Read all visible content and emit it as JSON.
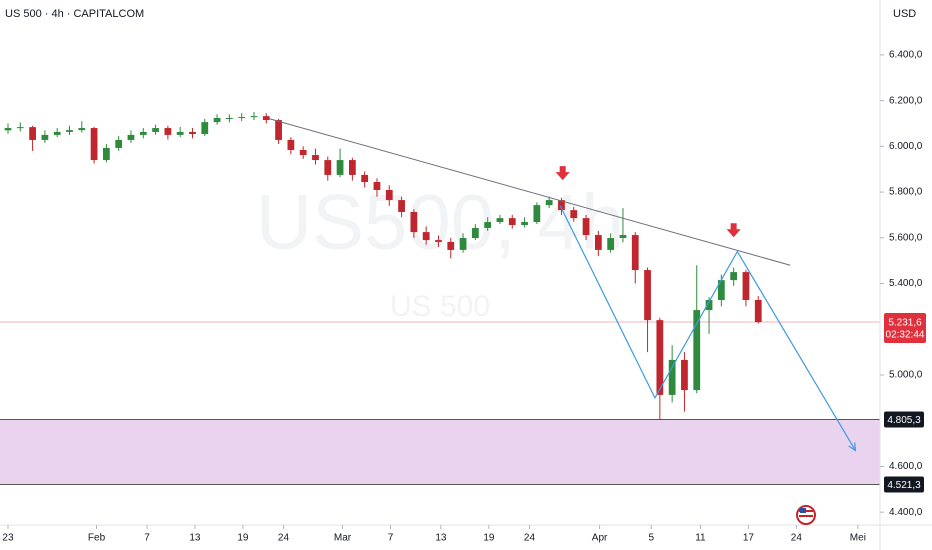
{
  "chart_data": {
    "type": "candlestick",
    "title": "US 500 · 4h · CAPITALCOM",
    "currency": "USD",
    "watermark": "US500, 4h",
    "watermark_subtitle": "US 500",
    "countdown": "02:32:44",
    "up_color": "#2e8b3e",
    "down_color": "#c0262d",
    "x": [
      0,
      1,
      2,
      3,
      4,
      5,
      6,
      7,
      8,
      9,
      10,
      11,
      12,
      13,
      14,
      15,
      16,
      17,
      18,
      19,
      20,
      21,
      22,
      23,
      24,
      25,
      26,
      27,
      28,
      29,
      30,
      31,
      32,
      33,
      34,
      35,
      36,
      37,
      38,
      39,
      40,
      41,
      42,
      43,
      44,
      45,
      46,
      47,
      48,
      49,
      50,
      51,
      52,
      53,
      54,
      55,
      56,
      57,
      58,
      59,
      60,
      61
    ],
    "open": [
      6070,
      6080,
      6084,
      6028,
      6050,
      6063,
      6071,
      6080,
      5940,
      5993,
      6028,
      6050,
      6063,
      6080,
      6050,
      6063,
      6054,
      6106,
      6124,
      6124,
      6128,
      6132,
      6115,
      6028,
      5984,
      5962,
      5940,
      5875,
      5940,
      5875,
      5844,
      5809,
      5765,
      5713,
      5625,
      5590,
      5582,
      5547,
      5599,
      5643,
      5669,
      5686,
      5656,
      5669,
      5743,
      5765,
      5721,
      5686,
      5612,
      5547,
      5599,
      5612,
      5459,
      5240,
      4913,
      5066,
      4934,
      5284,
      5328,
      5415,
      5450,
      5328
    ],
    "high": [
      6100,
      6105,
      6090,
      6070,
      6080,
      6090,
      6110,
      6085,
      6010,
      6045,
      6070,
      6080,
      6095,
      6090,
      6085,
      6080,
      6120,
      6140,
      6140,
      6145,
      6150,
      6145,
      6120,
      6040,
      6000,
      5990,
      5955,
      5990,
      5950,
      5890,
      5860,
      5830,
      5780,
      5725,
      5650,
      5610,
      5600,
      5620,
      5660,
      5690,
      5700,
      5700,
      5690,
      5755,
      5780,
      5775,
      5735,
      5700,
      5630,
      5620,
      5730,
      5625,
      5470,
      5250,
      5130,
      5100,
      5480,
      5340,
      5440,
      5470,
      5460,
      5345
    ],
    "low": [
      6055,
      6065,
      5980,
      6015,
      6040,
      6050,
      6060,
      5925,
      5930,
      5980,
      6015,
      6035,
      6050,
      6030,
      6040,
      6035,
      6045,
      6095,
      6105,
      6110,
      6115,
      6100,
      6010,
      5965,
      5945,
      5920,
      5850,
      5865,
      5850,
      5820,
      5780,
      5740,
      5690,
      5600,
      5570,
      5560,
      5510,
      5535,
      5590,
      5630,
      5660,
      5640,
      5645,
      5660,
      5730,
      5700,
      5670,
      5590,
      5520,
      5535,
      5580,
      5400,
      5100,
      4805,
      4880,
      4840,
      4920,
      5180,
      5300,
      5390,
      5300,
      5225
    ],
    "close": [
      6080,
      6084,
      6028,
      6050,
      6063,
      6071,
      6080,
      5940,
      5993,
      6028,
      6050,
      6063,
      6080,
      6050,
      6063,
      6054,
      6106,
      6124,
      6124,
      6128,
      6132,
      6115,
      6028,
      5984,
      5962,
      5940,
      5875,
      5940,
      5875,
      5844,
      5809,
      5765,
      5713,
      5625,
      5590,
      5582,
      5547,
      5599,
      5643,
      5669,
      5686,
      5656,
      5669,
      5743,
      5765,
      5721,
      5686,
      5612,
      5547,
      5599,
      5612,
      5459,
      5240,
      4913,
      5066,
      4934,
      5284,
      5328,
      5415,
      5450,
      5328,
      5231.6
    ],
    "xlim": [
      -0.65,
      70.9
    ],
    "xticks": [
      {
        "value": 0,
        "label": "23"
      },
      {
        "value": 7.2,
        "label": "Feb"
      },
      {
        "value": 11.3,
        "label": "7"
      },
      {
        "value": 15.2,
        "label": "13"
      },
      {
        "value": 19.1,
        "label": "19"
      },
      {
        "value": 22.4,
        "label": "24"
      },
      {
        "value": 27.2,
        "label": "Mar"
      },
      {
        "value": 31.1,
        "label": "7"
      },
      {
        "value": 35.2,
        "label": "13"
      },
      {
        "value": 39.1,
        "label": "19"
      },
      {
        "value": 42.4,
        "label": "24"
      },
      {
        "value": 48.1,
        "label": "Apr"
      },
      {
        "value": 52.3,
        "label": "5"
      },
      {
        "value": 56.3,
        "label": "11"
      },
      {
        "value": 60.2,
        "label": "17"
      },
      {
        "value": 64.1,
        "label": "24"
      },
      {
        "value": 69.1,
        "label": "Mei"
      }
    ],
    "ylim": [
      4344,
      6640
    ],
    "yticks": [
      {
        "value": 4400,
        "label": "4.400,0"
      },
      {
        "value": 4600,
        "label": "4.600,0"
      },
      {
        "value": 5000,
        "label": "5.000,0"
      },
      {
        "value": 5400,
        "label": "5.400,0"
      },
      {
        "value": 5600,
        "label": "5.600,0"
      },
      {
        "value": 5800,
        "label": "5.800,0"
      },
      {
        "value": 6000,
        "label": "6.000,0"
      },
      {
        "value": 6200,
        "label": "6.200,0"
      },
      {
        "value": 6400,
        "label": "6.400,0"
      }
    ],
    "last_price": {
      "value": 5231.6,
      "label": "5.231,6"
    },
    "zone": [
      {
        "value": 4805.3,
        "label": "4.805,3"
      },
      {
        "value": 4521.3,
        "label": "4.521,3"
      }
    ],
    "trendline": {
      "x": [
        21.3,
        63.6
      ],
      "y": [
        6120,
        5480
      ]
    },
    "projection": {
      "x": [
        44.9,
        52.6,
        59.3,
        68.9
      ],
      "y": [
        5740,
        4900,
        5540,
        4670
      ]
    },
    "markers": {
      "x": [
        45.1,
        59.0
      ],
      "y": [
        5870,
        5620
      ]
    }
  }
}
